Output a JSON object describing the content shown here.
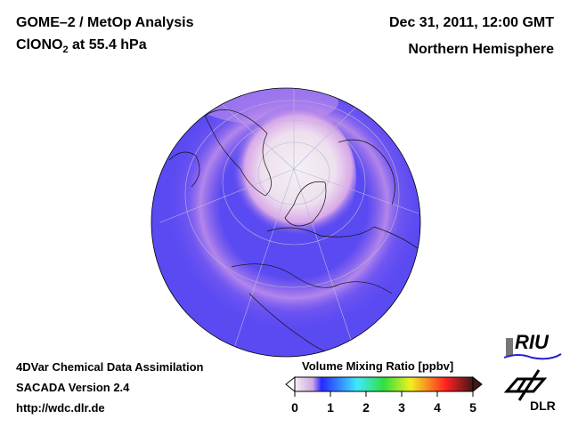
{
  "header": {
    "title": "GOME–2 / MetOp Analysis",
    "species_prefix": "ClONO",
    "species_subscript": "2",
    "species_suffix": " at 55.4 hPa",
    "datetime": "Dec 31, 2011, 12:00 GMT",
    "region": "Northern Hemisphere"
  },
  "footer": {
    "line1": "4DVar Chemical Data Assimilation",
    "line2": "SACADA Version 2.4",
    "url": "http://wdc.dlr.de"
  },
  "colorbar": {
    "title": "Volume Mixing Ratio [ppbv]",
    "min": 0,
    "max": 5,
    "ticks": [
      "0",
      "1",
      "2",
      "3",
      "4",
      "5"
    ],
    "colors": [
      "#ffffff",
      "#e8c8e0",
      "#2020ff",
      "#40e0ff",
      "#20e040",
      "#f0f020",
      "#ff2020",
      "#401010"
    ]
  },
  "logos": {
    "riu": "RIU",
    "dlr": "DLR"
  }
}
